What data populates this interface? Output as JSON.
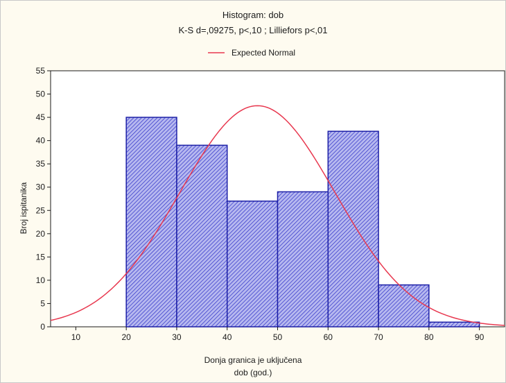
{
  "chart_data": {
    "type": "bar",
    "title": "Histogram: dob",
    "subtitle": "K-S d=,09275, p<,10 ; Lilliefors p<,01",
    "xlabel": "Donja granica je uključena",
    "xlabel2": "dob (god.)",
    "ylabel": "Broj ispitanika",
    "legend": {
      "label": "Expected Normal",
      "position": "top-center"
    },
    "bins": [
      {
        "from": 20,
        "to": 30,
        "value": 45
      },
      {
        "from": 30,
        "to": 40,
        "value": 39
      },
      {
        "from": 40,
        "to": 50,
        "value": 27
      },
      {
        "from": 50,
        "to": 60,
        "value": 29
      },
      {
        "from": 60,
        "to": 70,
        "value": 42
      },
      {
        "from": 70,
        "to": 80,
        "value": 9
      },
      {
        "from": 80,
        "to": 90,
        "value": 1
      }
    ],
    "xlim": [
      5,
      95
    ],
    "ylim": [
      0,
      55
    ],
    "xticks": [
      10,
      20,
      30,
      40,
      50,
      60,
      70,
      80,
      90
    ],
    "yticks": [
      0,
      5,
      10,
      15,
      20,
      25,
      30,
      35,
      40,
      45,
      50,
      55
    ],
    "expected_normal": {
      "mean": 46,
      "sd": 15.4,
      "peak": 47.5
    },
    "grid": false,
    "colors": {
      "bar_fill": "#b6b8ef",
      "bar_hatch": "#2c2fc8",
      "bar_edge": "#1c1fa6",
      "curve": "#e8384f",
      "background": "#fefbf0",
      "plot_area": "#ffffff"
    }
  }
}
